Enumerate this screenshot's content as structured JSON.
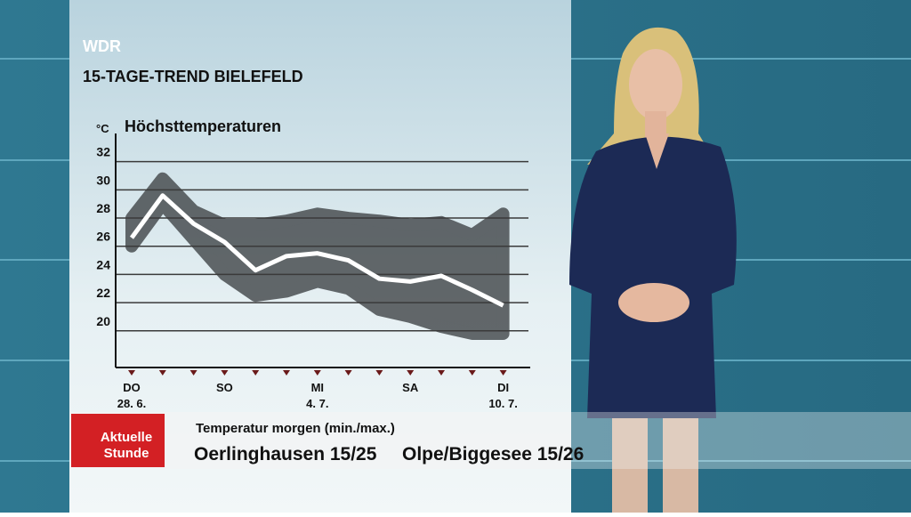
{
  "channel": "WDR",
  "heading": "15-TAGE-TREND BIELEFELD",
  "chart_data": {
    "type": "line",
    "title": "Höchsttemperaturen",
    "y_label": "°C",
    "categories": [
      "DO",
      null,
      null,
      "SO",
      null,
      null,
      "MI",
      null,
      null,
      "SA",
      null,
      null,
      "DI"
    ],
    "dates": [
      "28. 6.",
      null,
      null,
      null,
      null,
      null,
      "4. 7.",
      null,
      null,
      null,
      null,
      null,
      "10. 7."
    ],
    "series": [
      {
        "name": "Höchsttemperaturen",
        "color": "#ffffff",
        "values": [
          26.6,
          29.6,
          27.6,
          26.3,
          24.3,
          25.3,
          25.5,
          25.0,
          23.7,
          23.5,
          23.9,
          22.9,
          21.8
        ]
      }
    ],
    "range": {
      "color": "#4a4f52",
      "low": [
        26.0,
        29.0,
        26.5,
        24.0,
        22.5,
        22.8,
        23.5,
        23.0,
        21.5,
        21.0,
        20.3,
        19.8,
        19.8
      ],
      "high": [
        28.0,
        30.8,
        28.5,
        27.5,
        27.5,
        27.8,
        28.3,
        28.0,
        27.8,
        27.5,
        27.7,
        26.8,
        28.3
      ]
    },
    "ylim": [
      17.4,
      34
    ],
    "yticks": [
      20,
      22,
      24,
      26,
      28,
      30,
      32
    ],
    "grid": true
  },
  "ticker": {
    "logo": [
      "Aktuelle",
      "Stunde"
    ],
    "caption": "Temperatur morgen (min./max.)",
    "items": [
      "Oerlinghausen 15/25",
      "Olpe/Biggesee 15/26"
    ]
  }
}
